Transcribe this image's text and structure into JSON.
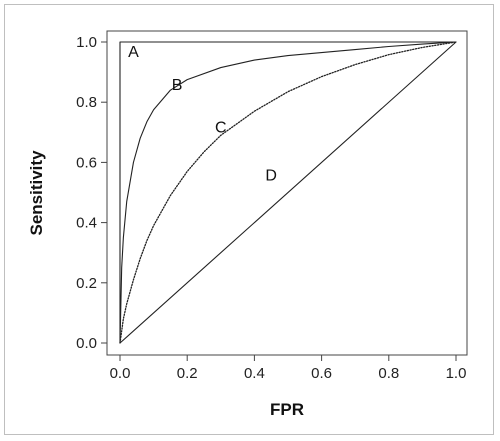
{
  "chart_data": {
    "type": "line",
    "xlabel": "FPR",
    "ylabel": "Sensitivity",
    "xlim": [
      0.0,
      1.0
    ],
    "ylim": [
      0.0,
      1.0
    ],
    "x_ticks": [
      "0.0",
      "0.2",
      "0.4",
      "0.6",
      "0.8",
      "1.0"
    ],
    "y_ticks": [
      "0.0",
      "0.2",
      "0.4",
      "0.6",
      "0.8",
      "1.0"
    ],
    "grid": false,
    "legend": "none",
    "series": [
      {
        "label": "A",
        "style": "solid",
        "x": [
          0.0,
          0.0,
          1.0
        ],
        "y": [
          0.0,
          1.0,
          1.0
        ],
        "label_pos": [
          0.04,
          0.95
        ]
      },
      {
        "label": "B",
        "style": "solid",
        "x": [
          0.0,
          0.005,
          0.01,
          0.02,
          0.04,
          0.06,
          0.08,
          0.1,
          0.15,
          0.2,
          0.3,
          0.4,
          0.5,
          0.6,
          0.7,
          0.8,
          0.9,
          1.0
        ],
        "y": [
          0.0,
          0.25,
          0.35,
          0.47,
          0.6,
          0.68,
          0.735,
          0.775,
          0.84,
          0.875,
          0.915,
          0.94,
          0.955,
          0.965,
          0.975,
          0.985,
          0.993,
          1.0
        ],
        "label_pos": [
          0.17,
          0.84
        ]
      },
      {
        "label": "C",
        "style": "dotted",
        "x": [
          0.0,
          0.01,
          0.02,
          0.04,
          0.06,
          0.08,
          0.1,
          0.15,
          0.2,
          0.25,
          0.3,
          0.4,
          0.5,
          0.6,
          0.7,
          0.8,
          0.9,
          1.0
        ],
        "y": [
          0.0,
          0.08,
          0.13,
          0.21,
          0.28,
          0.34,
          0.39,
          0.49,
          0.57,
          0.635,
          0.69,
          0.77,
          0.835,
          0.885,
          0.925,
          0.958,
          0.982,
          1.0
        ],
        "label_pos": [
          0.3,
          0.7
        ]
      },
      {
        "label": "D",
        "style": "solid",
        "x": [
          0.0,
          1.0
        ],
        "y": [
          0.0,
          1.0
        ],
        "label_pos": [
          0.45,
          0.54
        ]
      }
    ]
  }
}
